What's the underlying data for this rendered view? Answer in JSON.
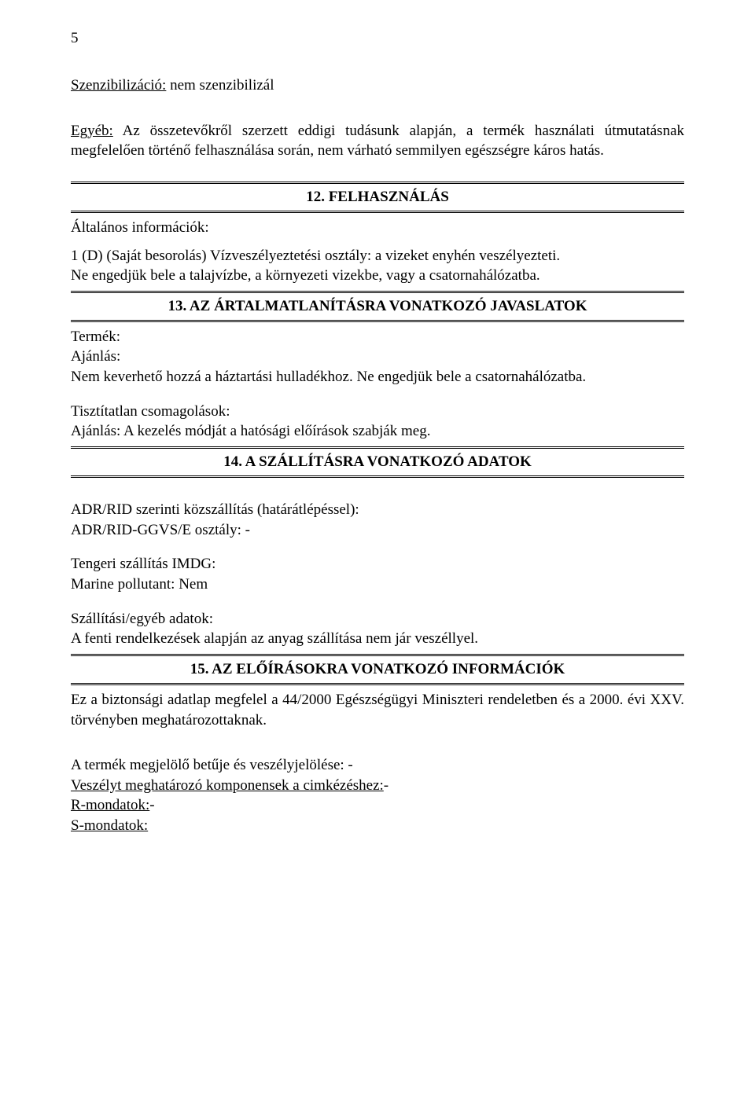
{
  "page_number": "5",
  "para1": {
    "label": "Szenzibilizáció:",
    "text": " nem szenzibilizál"
  },
  "para2": {
    "label": "Egyéb:",
    "text": " Az összetevőkről szerzett eddigi tudásunk alapján, a termék használati útmutatásnak megfelelően történő felhasználása során, nem várható semmilyen egészségre káros hatás."
  },
  "section12": {
    "heading": "12. FELHASZNÁLÁS",
    "p1": "Általános információk:",
    "p2": "1 (D) (Saját besorolás) Vízveszélyeztetési osztály: a vizeket enyhén veszélyezteti.",
    "p3": "Ne engedjük bele a talajvízbe, a környezeti vizekbe, vagy a csatornahálózatba."
  },
  "section13": {
    "heading": "13. AZ ÁRTALMATLANÍTÁSRA VONATKOZÓ JAVASLATOK",
    "p1": "Termék:",
    "p2": "Ajánlás:",
    "p3": "Nem keverhető hozzá a háztartási hulladékhoz. Ne engedjük bele a csatornahálózatba.",
    "p4": "Tisztítatlan csomagolások:",
    "p5": "Ajánlás: A kezelés módját a hatósági előírások szabják meg."
  },
  "section14": {
    "heading": "14. A SZÁLLÍTÁSRA VONATKOZÓ ADATOK",
    "p1": "ADR/RID szerinti közszállítás (határátlépéssel):",
    "p2": "ADR/RID-GGVS/E osztály:   -",
    "p3": "Tengeri szállítás IMDG:",
    "p4": "Marine pollutant: Nem",
    "p5": "Szállítási/egyéb adatok:",
    "p6": "A fenti rendelkezések alapján az anyag szállítása nem jár veszéllyel."
  },
  "section15": {
    "heading": "15. AZ ELŐÍRÁSOKRA VONATKOZÓ INFORMÁCIÓK",
    "p1": "Ez a biztonsági adatlap megfelel a 44/2000 Egészségügyi Miniszteri rendeletben és a 2000. évi XXV. törvényben meghatározottaknak.",
    "p2": "A termék megjelölő betűje és veszélyjelölése: -",
    "p3_label": "Veszélyt meghatározó komponensek a cimkézéshez:",
    "p3_rest": "-",
    "p4_label": "R-mondatok:",
    "p4_rest": "-",
    "p5_label": "S-mondatok:"
  },
  "style": {
    "font_family": "Times New Roman",
    "font_size_pt": 14,
    "text_color": "#000000",
    "background_color": "#ffffff",
    "rule_color": "#000000"
  }
}
